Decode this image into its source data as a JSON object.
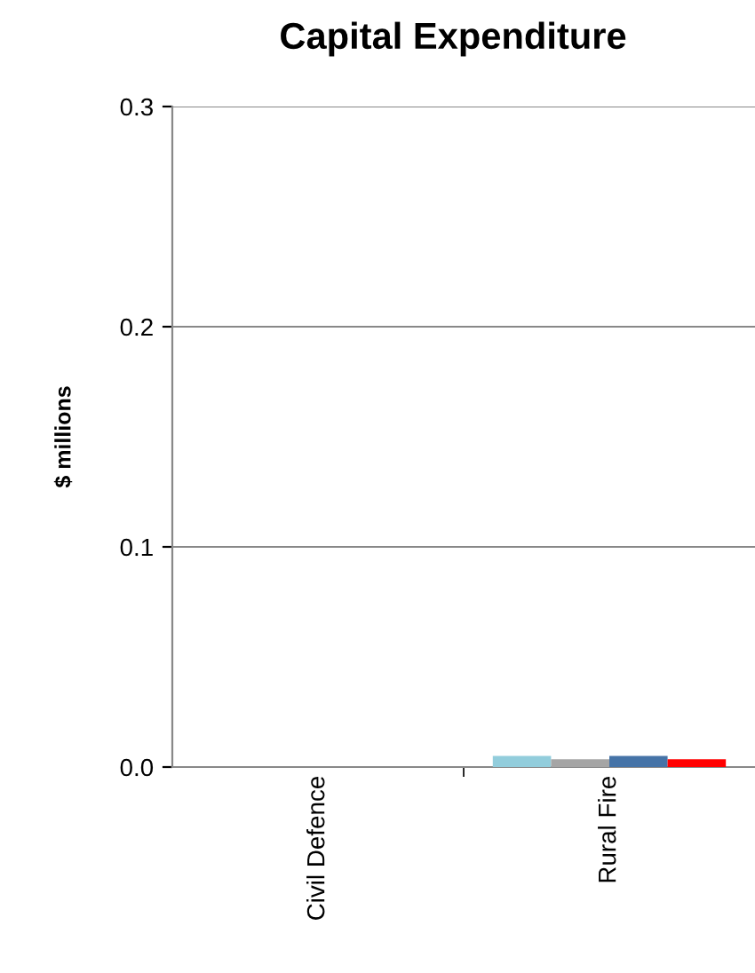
{
  "chart_data": {
    "type": "bar",
    "title": "Capital Expenditure",
    "ylabel": "$ millions",
    "categories": [
      "Civil Defence",
      "Rural Fire"
    ],
    "series": [
      {
        "color": "#92cddc",
        "values": [
          0,
          0.005
        ]
      },
      {
        "color": "#a5a5a5",
        "values": [
          0,
          0.0035
        ]
      },
      {
        "color": "#4573a7",
        "values": [
          0,
          0.005
        ]
      },
      {
        "color": "#ff0000",
        "values": [
          0,
          0.0035
        ]
      }
    ],
    "ylim": [
      0,
      0.3
    ],
    "yticks": [
      {
        "value": 0,
        "label": "0.0"
      },
      {
        "value": 0.1,
        "label": "0.1"
      },
      {
        "value": 0.2,
        "label": "0.2"
      },
      {
        "value": 0.3,
        "label": "0.3"
      }
    ],
    "grid": "y",
    "legend": false
  }
}
